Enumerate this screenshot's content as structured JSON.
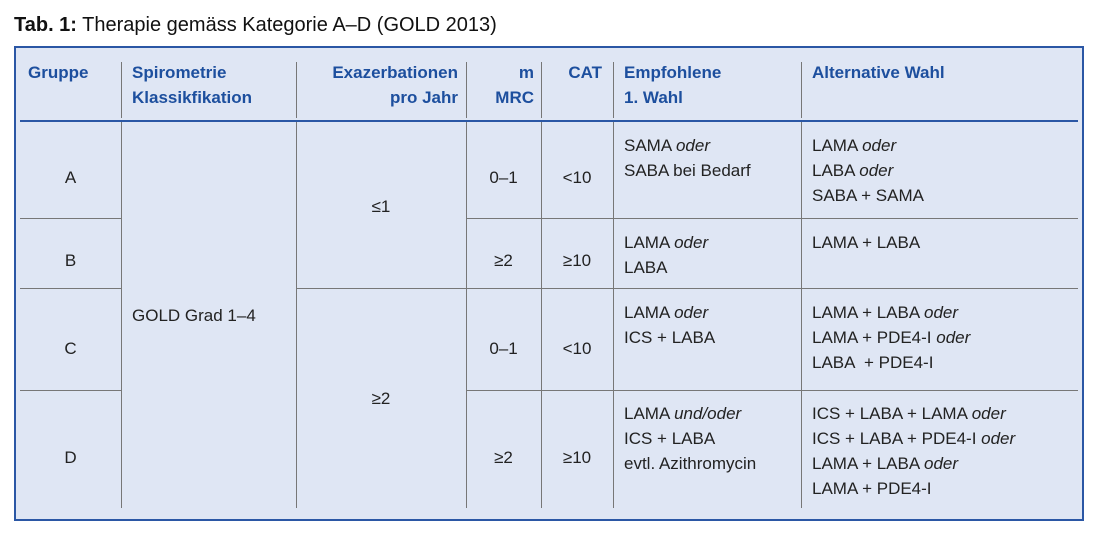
{
  "caption": {
    "label": "Tab. 1:",
    "title": "Therapie gemäss Kategorie A–D (GOLD 2013)"
  },
  "headers": {
    "gruppe": [
      "Gruppe"
    ],
    "spiro": [
      "Spirometrie",
      "Klassikfikation"
    ],
    "exa": [
      "Exazerbationen",
      "pro Jahr"
    ],
    "mmrc": [
      "m",
      "MRC"
    ],
    "cat": [
      "CAT"
    ],
    "empf": [
      "Empfohlene",
      "1. Wahl"
    ],
    "alt": [
      "Alternative Wahl"
    ]
  },
  "spirometrie_merged": "GOLD Grad 1–4",
  "exazerbationen": {
    "ab": "≤1",
    "cd": "≥2"
  },
  "rows": [
    {
      "gruppe": "A",
      "mmrc": "0–1",
      "cat": "<10",
      "empf": [
        {
          "t": "SAMA ",
          "i": "oder"
        },
        {
          "t": "SABA bei Bedarf",
          "i": ""
        }
      ],
      "alt": [
        {
          "t": "LAMA ",
          "i": "oder"
        },
        {
          "t": "LABA ",
          "i": "oder"
        },
        {
          "t": "SABA + SAMA",
          "i": ""
        }
      ]
    },
    {
      "gruppe": "B",
      "mmrc": "≥2",
      "cat": "≥10",
      "empf": [
        {
          "t": "LAMA ",
          "i": "oder"
        },
        {
          "t": "LABA",
          "i": ""
        }
      ],
      "alt": [
        {
          "t": "LAMA + LABA",
          "i": ""
        }
      ]
    },
    {
      "gruppe": "C",
      "mmrc": "0–1",
      "cat": "<10",
      "empf": [
        {
          "t": "LAMA ",
          "i": "oder"
        },
        {
          "t": "ICS + LABA",
          "i": ""
        }
      ],
      "alt": [
        {
          "t": "LAMA + LABA ",
          "i": "oder"
        },
        {
          "t": "LAMA + PDE4-I ",
          "i": "oder"
        },
        {
          "t": "LABA  + PDE4-I",
          "i": ""
        }
      ]
    },
    {
      "gruppe": "D",
      "mmrc": "≥2",
      "cat": "≥10",
      "empf": [
        {
          "t": "LAMA ",
          "i": "und/oder"
        },
        {
          "t": "ICS + LABA",
          "i": ""
        },
        {
          "t": "evtl. Azithromycin",
          "i": ""
        }
      ],
      "alt": [
        {
          "t": "ICS + LABA + LAMA ",
          "i": "oder"
        },
        {
          "t": "ICS + LABA + PDE4-I ",
          "i": "oder"
        },
        {
          "t": "LAMA + LABA ",
          "i": "oder"
        },
        {
          "t": "LAMA + PDE4-I",
          "i": ""
        }
      ]
    }
  ]
}
